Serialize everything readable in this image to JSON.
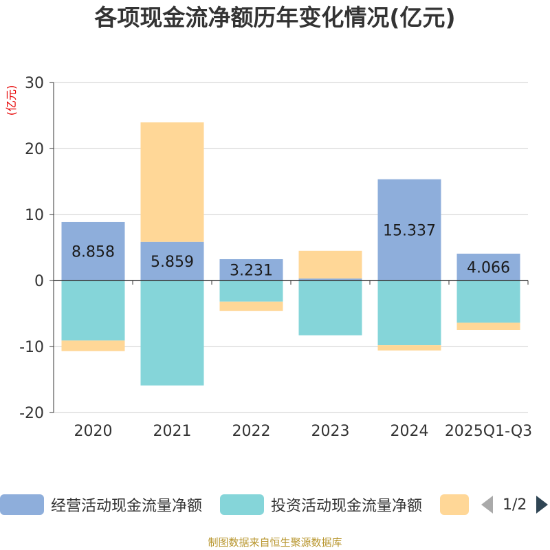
{
  "chart_data": {
    "type": "bar",
    "stacked": true,
    "title": "各项现金流净额历年变化情况(亿元)",
    "ylabel": "(亿元)",
    "ylim": [
      -20,
      30
    ],
    "yticks": [
      30,
      20,
      10,
      0,
      -10,
      -20
    ],
    "categories": [
      "2020",
      "2021",
      "2022",
      "2023",
      "2024",
      "2025Q1-Q3"
    ],
    "series": [
      {
        "name": "经营活动现金流量净额",
        "color": "#8eaedb",
        "values": [
          8.858,
          5.859,
          3.231,
          0.3,
          15.337,
          4.066
        ],
        "labels": [
          "8.858",
          "5.859",
          "3.231",
          "",
          "15.337",
          "4.066"
        ]
      },
      {
        "name": "投资活动现金流量净额",
        "color": "#85d5d9",
        "values": [
          -9.1,
          -15.9,
          -3.2,
          -8.3,
          -9.8,
          -6.4
        ]
      },
      {
        "name": "",
        "color": "#ffd797",
        "values": [
          -1.6,
          18.1,
          -1.4,
          4.2,
          -0.8,
          -1.1
        ]
      }
    ],
    "legend_position": "bottom",
    "grid": true
  },
  "legend": {
    "page": "1/2"
  },
  "source": "制图数据来自恒生聚源数据库"
}
